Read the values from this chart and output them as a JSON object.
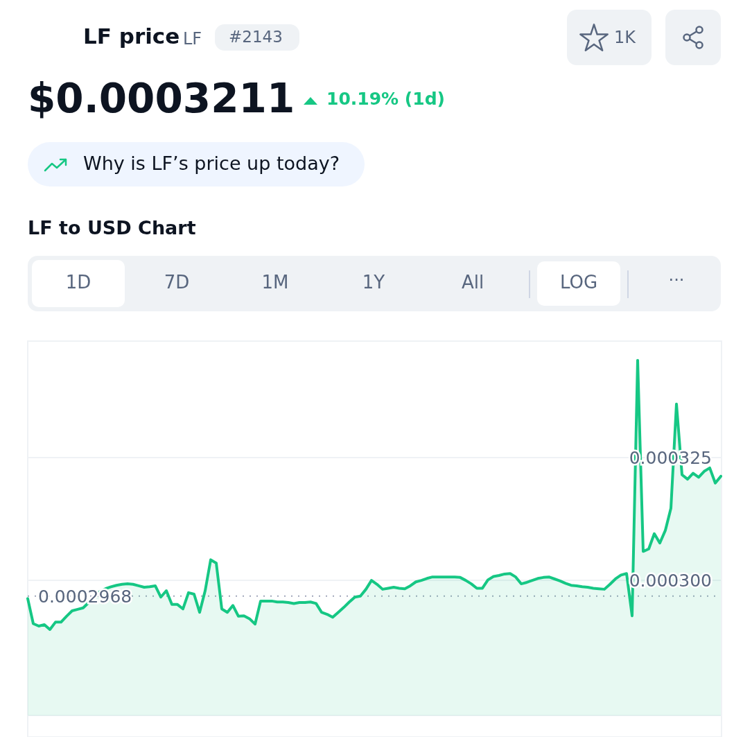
{
  "chart_data": {
    "type": "area",
    "title": "LF to USD Chart",
    "annotations": [
      "LF price",
      "LF",
      "#2143",
      "1K",
      "$0.0003211",
      "10.19% (1d)",
      "Why is LF’s price up today?",
      "1D",
      "7D",
      "1M",
      "1Y",
      "All",
      "LOG",
      "···"
    ],
    "categories": [
      null,
      null,
      null,
      null,
      null,
      null,
      null,
      null,
      null,
      null,
      null,
      null,
      null,
      null,
      null,
      null,
      null,
      null,
      null,
      null,
      null,
      null,
      null,
      null,
      null,
      null,
      null,
      null,
      null,
      null,
      null,
      null,
      null,
      null,
      null,
      null,
      null,
      null,
      null,
      null,
      null,
      null,
      null,
      null,
      null,
      null,
      null,
      null,
      null,
      null,
      null,
      null,
      null,
      null,
      null,
      null,
      null,
      null,
      null,
      null,
      null,
      null,
      null,
      null,
      null,
      null,
      null,
      null,
      null,
      null,
      null,
      null,
      null,
      null,
      null,
      null,
      null,
      null,
      null,
      null,
      null,
      null,
      null,
      null,
      null,
      null,
      null,
      null,
      null,
      null,
      null,
      null,
      null,
      null,
      null,
      null,
      null,
      null,
      null,
      null,
      null,
      null,
      null,
      null,
      null,
      null,
      null,
      null,
      null,
      null,
      null,
      null,
      null,
      null,
      null,
      null,
      null,
      null,
      null,
      null,
      null,
      null,
      null,
      null,
      null,
      null
    ],
    "series": [
      {
        "color": "#16c784",
        "values": [
          0.0002963,
          0.0002912,
          0.0002907,
          0.000291,
          0.00029,
          0.0002915,
          0.0002915,
          0.0002927,
          0.0002938,
          0.0002941,
          0.0002944,
          0.0002955,
          0.0002969,
          0.0002977,
          0.0002983,
          0.0002987,
          0.000299,
          0.0002992,
          0.0002993,
          0.0002992,
          0.0002989,
          0.0002986,
          0.0002987,
          0.0002989,
          0.0002966,
          0.0002979,
          0.0002951,
          0.0002951,
          0.0002942,
          0.0002975,
          0.0002972,
          0.0002935,
          0.0002979,
          0.0003042,
          0.0003035,
          0.0002942,
          0.0002935,
          0.0002949,
          0.0002927,
          0.0002928,
          0.0002922,
          0.0002911,
          0.0002958,
          0.0002958,
          0.0002958,
          0.0002956,
          0.0002956,
          0.0002955,
          0.0002953,
          0.0002955,
          0.0002955,
          0.0002956,
          0.0002953,
          0.0002935,
          0.0002931,
          0.0002925,
          0.0002935,
          0.0002945,
          0.0002956,
          0.0002966,
          0.0002968,
          0.0002982,
          0.0003,
          0.0002992,
          0.0002982,
          0.0002984,
          0.0002986,
          0.0002984,
          0.0002983,
          0.0002989,
          0.0002997,
          0.0003,
          0.0003004,
          0.0003007,
          0.0003007,
          0.0003007,
          0.0003007,
          0.0003007,
          0.0003006,
          0.0003,
          0.0002993,
          0.0002984,
          0.0002984,
          0.0003001,
          0.0003008,
          0.000301,
          0.0003013,
          0.0003014,
          0.0003007,
          0.0002993,
          0.0002996,
          0.0003,
          0.0003004,
          0.0003006,
          0.0003007,
          0.0003003,
          0.0002999,
          0.0002994,
          0.000299,
          0.0002989,
          0.0002987,
          0.0002986,
          0.0002984,
          0.0002983,
          0.0002982,
          0.0002992,
          0.0003003,
          0.0003011,
          0.0003014,
          0.0002928,
          0.0003448,
          0.0003059,
          0.0003064,
          0.0003095,
          0.0003076,
          0.0003102,
          0.0003147,
          0.0003359,
          0.0003215,
          0.0003206,
          0.0003218,
          0.000321,
          0.0003222,
          0.0003229,
          0.0003198,
          0.0003212
        ]
      }
    ],
    "ylim": [
      0.0002725,
      0.0003487
    ],
    "yticks": [
      {
        "value": 0.000325,
        "label": "0.000325"
      },
      {
        "value": 0.0003,
        "label": "0.000300"
      }
    ],
    "tick_labels": "y",
    "grid": "y",
    "ref_lines": [
      {
        "axis": "y",
        "value": 0.0002968,
        "label": "0.0002968",
        "color": "#a1a7bb",
        "line_style": "dotted"
      }
    ]
  }
}
